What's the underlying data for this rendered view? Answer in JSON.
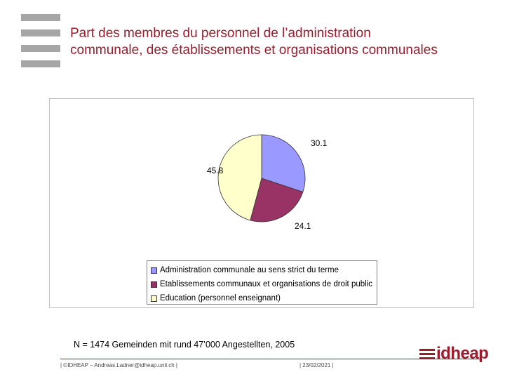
{
  "slide": {
    "title_line1": "Part des membres du personnel de l’administration",
    "title_line2": "communale, des établissements et organisations communales",
    "note": "N = 1474 Gemeinden mit rund 47’000 Angestellten, 2005",
    "footer_left": "| ©IDHEAP – Andreas.Ladner@idheap.unil.ch |",
    "footer_date": "| 23/02/2021 |",
    "brand": "idheap"
  },
  "chart_data": {
    "type": "pie",
    "categories": [
      "Administration communale au sens strict du terme",
      "Etablissements communaux et organisations de droit public",
      "Education (personnel enseignant)"
    ],
    "values": [
      30.1,
      24.1,
      45.8
    ],
    "data_labels": [
      "30.1",
      "24.1",
      "45.8"
    ],
    "colors": [
      "#9999ff",
      "#993366",
      "#ffffcc"
    ],
    "legend_position": "bottom"
  }
}
